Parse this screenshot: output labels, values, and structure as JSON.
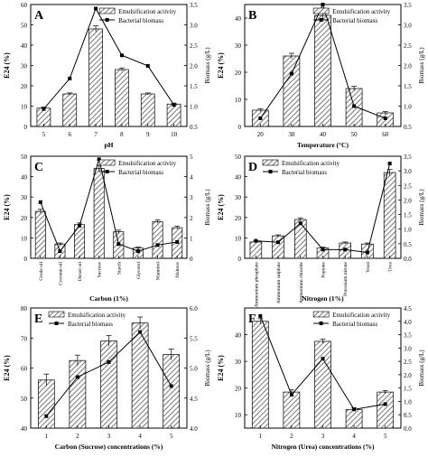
{
  "colors": {
    "bar_fill": "#ffffff",
    "hatch": "#555555",
    "line": "#000000"
  },
  "chart_data": [
    {
      "panel": "A",
      "type": "bar",
      "categories": [
        "5",
        "6",
        "7",
        "8",
        "9",
        "10"
      ],
      "xlabel": "pH",
      "ylabel": "E24 (%)",
      "y2label": "Biomass (g/L)",
      "ylim": [
        0,
        60
      ],
      "yticks": [
        0,
        10,
        20,
        30,
        40,
        50,
        60
      ],
      "y2lim": [
        0.5,
        3.5
      ],
      "y2ticks": [
        0.5,
        1.0,
        1.5,
        2.0,
        2.5,
        3.0,
        3.5
      ],
      "series": [
        {
          "name": "Emulsification activity",
          "axis": "left",
          "values": [
            9,
            16,
            48,
            28,
            16,
            11
          ],
          "errors": [
            0.5,
            0.5,
            1.5,
            0.8,
            0.5,
            0.5
          ]
        },
        {
          "name": "Bacterial biomass",
          "axis": "right",
          "values": [
            0.93,
            1.68,
            3.4,
            2.25,
            1.99,
            1.03
          ]
        }
      ],
      "legend": "top-right"
    },
    {
      "panel": "B",
      "type": "bar",
      "categories": [
        "20",
        "30",
        "40",
        "50",
        "60"
      ],
      "xlabel": "Temperature (°C)",
      "ylabel": "E24 (%)",
      "y2label": "Biomass (g/L)",
      "ylim": [
        0,
        45
      ],
      "yticks": [
        0,
        10,
        20,
        30,
        40
      ],
      "y2lim": [
        0.5,
        3.5
      ],
      "y2ticks": [
        0.5,
        1.0,
        1.5,
        2.0,
        2.5,
        3.0,
        3.5
      ],
      "series": [
        {
          "name": "Emulsification activity",
          "axis": "left",
          "values": [
            6,
            26,
            41,
            14,
            5
          ],
          "errors": [
            0.5,
            1.0,
            1.5,
            0.8,
            0.5
          ]
        },
        {
          "name": "Bacterial biomass",
          "axis": "right",
          "values": [
            0.7,
            1.8,
            3.5,
            1.0,
            0.7
          ]
        }
      ],
      "legend": "top-right"
    },
    {
      "panel": "C",
      "type": "bar",
      "categories": [
        "Crude oil",
        "Coconut oil",
        "Diesel oil",
        "Sucrose",
        "Starch",
        "Glycerol",
        "Mannitol",
        "Maltose"
      ],
      "xlabel": "Carbon (1%)",
      "ylabel": "E24 (%)",
      "y2label": "Biomass (g/L)",
      "ylim": [
        0,
        50
      ],
      "yticks": [
        0,
        10,
        20,
        30,
        40,
        50
      ],
      "y2lim": [
        0,
        5
      ],
      "y2ticks": [
        0,
        1,
        2,
        3,
        4,
        5
      ],
      "series": [
        {
          "name": "Emulsification activity",
          "axis": "left",
          "values": [
            23,
            7,
            16.5,
            44,
            13,
            5,
            18,
            15
          ],
          "errors": [
            1.0,
            0.5,
            0.8,
            1.5,
            0.8,
            0.5,
            0.8,
            0.8
          ]
        },
        {
          "name": "Bacterial biomass",
          "axis": "right",
          "values": [
            2.75,
            0.35,
            1.6,
            4.85,
            0.7,
            0.35,
            0.65,
            0.8
          ]
        }
      ],
      "legend": "top-right"
    },
    {
      "panel": "D",
      "type": "bar",
      "categories": [
        "Ammonium phosphate",
        "Ammonium sulphate",
        "Ammonium chloride",
        "Peptone",
        "Potassium nitrate",
        "Yeast",
        "Urea"
      ],
      "xlabel": "Nitrogen (1%)",
      "ylabel": "E24 (%)",
      "y2label": "Biomass (g/L)",
      "ylim": [
        0,
        50
      ],
      "yticks": [
        0,
        10,
        20,
        30,
        40,
        50
      ],
      "y2lim": [
        0,
        3.5
      ],
      "y2ticks": [
        0.0,
        0.5,
        1.0,
        1.5,
        2.0,
        2.5,
        3.0,
        3.5
      ],
      "series": [
        {
          "name": "Emulsification activity",
          "axis": "left",
          "values": [
            8,
            11,
            19,
            5,
            7.5,
            7,
            42
          ],
          "errors": [
            0.5,
            0.5,
            0.8,
            0.5,
            0.5,
            0.5,
            1.5
          ]
        },
        {
          "name": "Bacterial biomass",
          "axis": "right",
          "values": [
            0.6,
            0.55,
            1.2,
            0.3,
            0.3,
            0.2,
            3.25
          ]
        }
      ],
      "legend": "top-left"
    },
    {
      "panel": "E",
      "type": "bar",
      "categories": [
        "1",
        "2",
        "3",
        "4",
        "5"
      ],
      "xlabel": "Carbon (Sucrose) concentrations (%)",
      "ylabel": "E24 (%)",
      "y2label": "Biomass (g/L)",
      "ylim": [
        40,
        80
      ],
      "yticks": [
        40,
        50,
        60,
        70,
        80
      ],
      "y2lim": [
        4.0,
        6.0
      ],
      "y2ticks": [
        4.0,
        4.5,
        5.0,
        5.5,
        6.0
      ],
      "series": [
        {
          "name": "Emulsification activity",
          "axis": "left",
          "values": [
            56,
            62.5,
            69,
            75,
            64.5
          ],
          "errors": [
            2.0,
            1.8,
            1.8,
            2.0,
            1.8
          ]
        },
        {
          "name": "Bacterial biomass",
          "axis": "right",
          "values": [
            4.2,
            4.85,
            5.1,
            5.6,
            4.7
          ]
        }
      ],
      "legend": "top-left"
    },
    {
      "panel": "F",
      "type": "bar",
      "categories": [
        "1",
        "2",
        "3",
        "4",
        "5"
      ],
      "xlabel": "Nitrogen (Urea) concentrations (%)",
      "ylabel": "E24 (%)",
      "y2label": "Biomass (g/L)",
      "ylim": [
        5,
        50
      ],
      "yticks": [
        10,
        20,
        30,
        40
      ],
      "y2lim": [
        0,
        4.5
      ],
      "y2ticks": [
        0.0,
        0.5,
        1.0,
        1.5,
        2.0,
        2.5,
        3.0,
        3.5,
        4.0,
        4.5
      ],
      "series": [
        {
          "name": "Emulsification activity",
          "axis": "left",
          "values": [
            45,
            18.5,
            37.5,
            12,
            18.5
          ],
          "errors": [
            1.0,
            0.8,
            0.8,
            0.6,
            0.6
          ]
        },
        {
          "name": "Bacterial biomass",
          "axis": "right",
          "values": [
            4.2,
            1.25,
            2.6,
            0.7,
            0.9
          ]
        }
      ],
      "legend": "top-right"
    }
  ]
}
